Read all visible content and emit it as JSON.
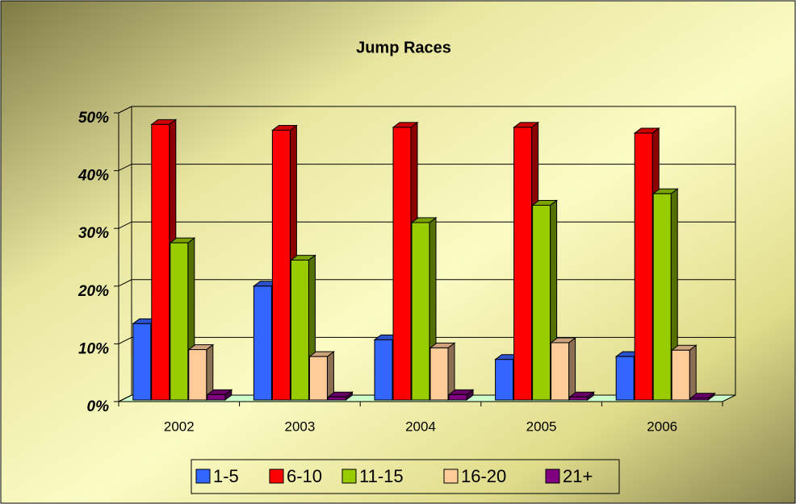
{
  "chart_data": {
    "type": "bar3d",
    "title": "Jump Races",
    "categories": [
      "2002",
      "2003",
      "2004",
      "2005",
      "2006"
    ],
    "series": [
      {
        "name": "1-5",
        "color": "#3366ff",
        "values": [
          13.5,
          20,
          10.7,
          7.3,
          7.8
        ]
      },
      {
        "name": "6-10",
        "color": "#ff0000",
        "values": [
          48,
          47,
          47.5,
          47.5,
          46.5
        ]
      },
      {
        "name": "11-15",
        "color": "#99cc00",
        "values": [
          27.5,
          24.5,
          31,
          34,
          36
        ]
      },
      {
        "name": "16-20",
        "color": "#ffcc99",
        "values": [
          9,
          7.8,
          9.3,
          10.2,
          8.9
        ]
      },
      {
        "name": "21+",
        "color": "#800080",
        "values": [
          1.2,
          0.8,
          1.2,
          0.8,
          0.6
        ]
      }
    ],
    "ylim": [
      0,
      50
    ],
    "yticks": [
      {
        "value": 0,
        "label": "0%"
      },
      {
        "value": 10,
        "label": "10%"
      },
      {
        "value": 20,
        "label": "20%"
      },
      {
        "value": 30,
        "label": "30%"
      },
      {
        "value": 40,
        "label": "40%"
      },
      {
        "value": 50,
        "label": "50%"
      }
    ],
    "grid": true,
    "legend": "bottom"
  }
}
